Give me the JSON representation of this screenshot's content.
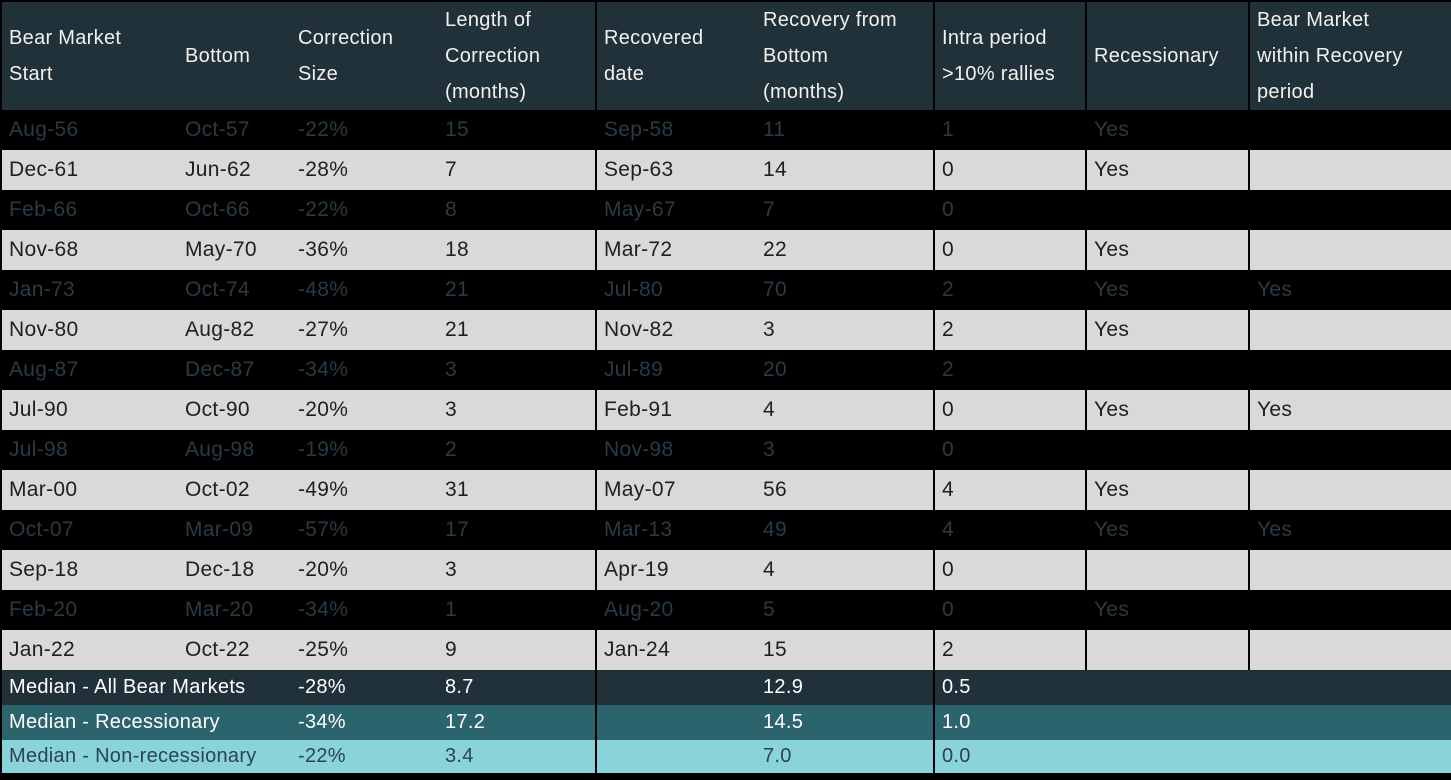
{
  "chart_data": {
    "type": "table",
    "title": "Bear markets: corrections, recoveries and recessions",
    "columns": [
      {
        "key": "bear_market_start",
        "label": "Bear Market Start",
        "lines": [
          "Bear Market",
          "Start"
        ]
      },
      {
        "key": "bottom",
        "label": "Bottom",
        "lines": [
          "Bottom"
        ]
      },
      {
        "key": "correction_size",
        "label": "Correction Size",
        "lines": [
          "Correction",
          "Size"
        ]
      },
      {
        "key": "length_of_correction",
        "label": "Length of Correction (months)",
        "lines": [
          "Length of",
          "Correction",
          "(months)"
        ]
      },
      {
        "key": "recovered_date",
        "label": "Recovered date",
        "lines": [
          "Recovered",
          "date"
        ],
        "divider": true
      },
      {
        "key": "recovery_from_bottom",
        "label": "Recovery from Bottom (months)",
        "lines": [
          "Recovery from",
          "Bottom",
          "(months)"
        ]
      },
      {
        "key": "intra_period_rallies",
        "label": "Intra period >10% rallies",
        "lines": [
          "Intra period",
          ">10% rallies"
        ],
        "divider": true
      },
      {
        "key": "recessionary",
        "label": "Recessionary",
        "lines": [
          "Recessionary"
        ],
        "divider": true
      },
      {
        "key": "bear_market_within_recovery",
        "label": "Bear Market within Recovery period",
        "lines": [
          "Bear Market",
          "within Recovery",
          "period"
        ],
        "divider": true
      }
    ],
    "rows": [
      [
        "Aug-56",
        "Oct-57",
        "-22%",
        "15",
        "Sep-58",
        "11",
        "1",
        "Yes",
        ""
      ],
      [
        "Dec-61",
        "Jun-62",
        "-28%",
        "7",
        "Sep-63",
        "14",
        "0",
        "Yes",
        ""
      ],
      [
        "Feb-66",
        "Oct-66",
        "-22%",
        "8",
        "May-67",
        "7",
        "0",
        "",
        ""
      ],
      [
        "Nov-68",
        "May-70",
        "-36%",
        "18",
        "Mar-72",
        "22",
        "0",
        "Yes",
        ""
      ],
      [
        "Jan-73",
        "Oct-74",
        "-48%",
        "21",
        "Jul-80",
        "70",
        "2",
        "Yes",
        "Yes"
      ],
      [
        "Nov-80",
        "Aug-82",
        "-27%",
        "21",
        "Nov-82",
        "3",
        "2",
        "Yes",
        ""
      ],
      [
        "Aug-87",
        "Dec-87",
        "-34%",
        "3",
        "Jul-89",
        "20",
        "2",
        "",
        ""
      ],
      [
        "Jul-90",
        "Oct-90",
        "-20%",
        "3",
        "Feb-91",
        "4",
        "0",
        "Yes",
        "Yes"
      ],
      [
        "Jul-98",
        "Aug-98",
        "-19%",
        "2",
        "Nov-98",
        "3",
        "0",
        "",
        ""
      ],
      [
        "Mar-00",
        "Oct-02",
        "-49%",
        "31",
        "May-07",
        "56",
        "4",
        "Yes",
        ""
      ],
      [
        "Oct-07",
        "Mar-09",
        "-57%",
        "17",
        "Mar-13",
        "49",
        "4",
        "Yes",
        "Yes"
      ],
      [
        "Sep-18",
        "Dec-18",
        "-20%",
        "3",
        "Apr-19",
        "4",
        "0",
        "",
        ""
      ],
      [
        "Feb-20",
        "Mar-20",
        "-34%",
        "1",
        "Aug-20",
        "5",
        "0",
        "Yes",
        ""
      ],
      [
        "Jan-22",
        "Oct-22",
        "-25%",
        "9",
        "Jan-24",
        "15",
        "2",
        "",
        ""
      ]
    ],
    "summary_rows": [
      {
        "label": "Median - All Bear Markets",
        "correction_size": "-28%",
        "length_of_correction": "8.7",
        "recovered_date": "",
        "recovery_from_bottom": "12.9",
        "intra_period_rallies": "0.5",
        "style": "dark"
      },
      {
        "label": "Median - Recessionary",
        "correction_size": "-34%",
        "length_of_correction": "17.2",
        "recovered_date": "",
        "recovery_from_bottom": "14.5",
        "intra_period_rallies": "1.0",
        "style": "teal"
      },
      {
        "label": "Median - Non-recessionary",
        "correction_size": "-22%",
        "length_of_correction": "3.4",
        "recovered_date": "",
        "recovery_from_bottom": "7.0",
        "intra_period_rallies": "0.0",
        "style": "cyan"
      }
    ],
    "layout_hints": {
      "row_striping": "alternating black and light-gray data rows starting with black",
      "dividers_at_columns": [
        "recovered_date",
        "intra_period_rallies",
        "recessionary",
        "bear_market_within_recovery"
      ],
      "summary_dividers_at_columns": [
        "recovered_date",
        "intra_period_rallies"
      ]
    }
  },
  "colors": {
    "header_bg": "#20313A",
    "header_text": "#F2F1EC",
    "row_dark_bg": "#000000",
    "row_dark_text": "#2A3A45",
    "row_light_bg": "#D9D9D9",
    "row_light_text": "#1F1F1F",
    "summary_dark_bg": "#20313A",
    "summary_teal_bg": "#2B646C",
    "summary_cyan_bg": "#8AD3DA",
    "summary_cyan_text": "#2B4450",
    "summary_light_text": "#FFFFFF",
    "divider": "#000000"
  }
}
